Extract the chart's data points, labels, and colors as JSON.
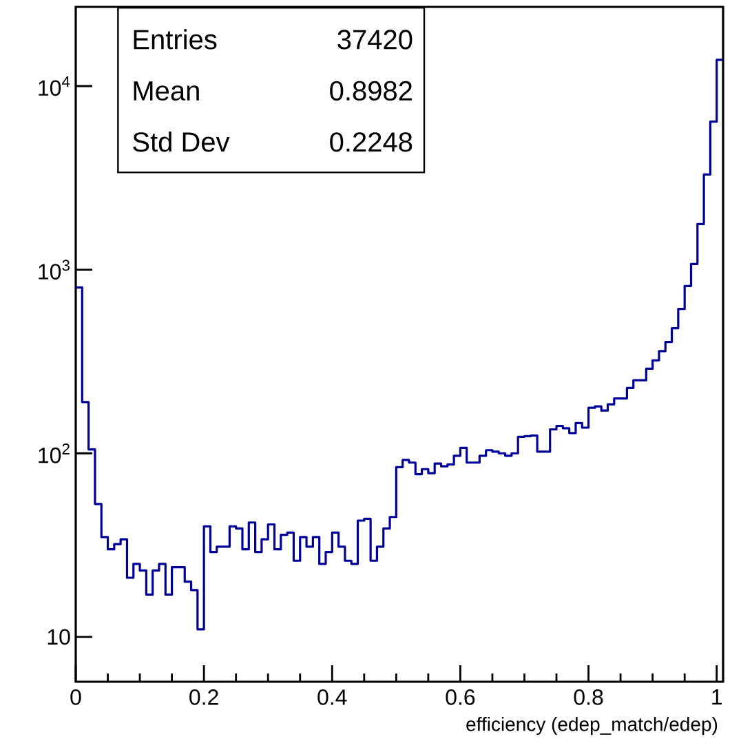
{
  "chart_data": {
    "type": "histogram",
    "xlabel": "efficiency (edep_match/edep)",
    "annotations": [
      "Entries",
      "37420",
      "Mean",
      "0.8982",
      "Std Dev",
      "0.2248"
    ],
    "bins": [
      0,
      0.01,
      0.02,
      0.03,
      0.04,
      0.05,
      0.06,
      0.07,
      0.08,
      0.09,
      0.1,
      0.11,
      0.12,
      0.13,
      0.14,
      0.15,
      0.16,
      0.17,
      0.18,
      0.19,
      0.2,
      0.21,
      0.22,
      0.23,
      0.24,
      0.25,
      0.26,
      0.27,
      0.28,
      0.29,
      0.3,
      0.31,
      0.32,
      0.33,
      0.34,
      0.35,
      0.36,
      0.37,
      0.38,
      0.39,
      0.4,
      0.41,
      0.42,
      0.43,
      0.44,
      0.45,
      0.46,
      0.47,
      0.48,
      0.49,
      0.5,
      0.51,
      0.52,
      0.53,
      0.54,
      0.55,
      0.56,
      0.57,
      0.58,
      0.59,
      0.6,
      0.61,
      0.62,
      0.63,
      0.64,
      0.65,
      0.66,
      0.67,
      0.68,
      0.69,
      0.7,
      0.71,
      0.72,
      0.73,
      0.74,
      0.75,
      0.76,
      0.77,
      0.78,
      0.79,
      0.8,
      0.81,
      0.82,
      0.83,
      0.84,
      0.85,
      0.86,
      0.87,
      0.88,
      0.89,
      0.9,
      0.91,
      0.92,
      0.93,
      0.94,
      0.95,
      0.96,
      0.97,
      0.98,
      0.99,
      1.0,
      1.01
    ],
    "values": [
      800,
      190,
      105,
      53,
      35,
      30,
      32,
      34,
      21,
      25,
      23,
      17,
      23,
      25,
      17,
      24,
      24,
      20,
      18,
      11,
      40,
      29,
      31,
      31,
      40,
      39,
      30,
      42,
      29,
      34,
      41,
      30,
      36,
      37,
      26,
      35,
      31,
      35,
      25,
      29,
      37,
      31,
      26,
      25,
      43,
      44,
      26,
      31,
      39,
      45,
      84,
      92,
      89,
      77,
      82,
      78,
      88,
      85,
      87,
      97,
      107,
      89,
      89,
      97,
      104,
      102,
      100,
      97,
      100,
      123,
      124,
      125,
      102,
      102,
      135,
      141,
      137,
      129,
      146,
      138,
      177,
      180,
      171,
      185,
      199,
      199,
      227,
      250,
      250,
      289,
      321,
      360,
      404,
      480,
      611,
      815,
      1074,
      1772,
      3300,
      6400,
      13900
    ],
    "color": "#000099",
    "log": "y",
    "xlim": [
      0,
      1.01
    ],
    "ylim": [
      5.7,
      27000
    ],
    "xticks": [
      0,
      0.2,
      0.4,
      0.6,
      0.8,
      1
    ],
    "yticks": [
      {
        "value": 10,
        "label": "10"
      },
      {
        "value": 100,
        "label": "10$^{2}$"
      },
      {
        "value": 1000,
        "label": "10$^{3}$"
      },
      {
        "value": 10000,
        "label": "10$^{4}$"
      }
    ],
    "grid": false
  }
}
